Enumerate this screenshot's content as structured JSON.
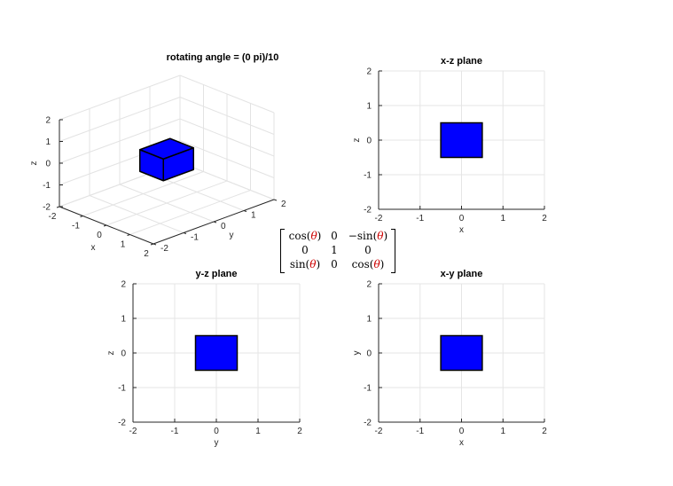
{
  "chart_data": [
    {
      "type": "scatter",
      "subtype": "3d-surface",
      "title": "rotating angle = (0 pi)/10",
      "xlabel": "x",
      "ylabel": "y",
      "zlabel": "z",
      "xlim": [
        -2,
        2
      ],
      "ylim": [
        -2,
        2
      ],
      "zlim": [
        -2,
        2
      ],
      "xticks": [
        "-2",
        "-1",
        "0",
        "1",
        "2"
      ],
      "yticks": [
        "-2",
        "-1",
        "0",
        "1",
        "2"
      ],
      "zticks": [
        "-2",
        "-1",
        "0",
        "1",
        "2"
      ],
      "grid": true,
      "box": {
        "x": [
          -0.5,
          0.5
        ],
        "y": [
          -0.5,
          0.5
        ],
        "z": [
          -0.5,
          0.5
        ],
        "color": "#0000ff"
      }
    },
    {
      "type": "area",
      "title": "x-z plane",
      "xlabel": "x",
      "ylabel": "z",
      "xlim": [
        -2,
        2
      ],
      "ylim": [
        -2,
        2
      ],
      "xticks": [
        "-2",
        "-1",
        "0",
        "1",
        "2"
      ],
      "yticks": [
        "-2",
        "-1",
        "0",
        "1",
        "2"
      ],
      "grid": true,
      "square": {
        "x": [
          -0.5,
          0.5
        ],
        "y": [
          -0.5,
          0.5
        ],
        "color": "#0000ff"
      }
    },
    {
      "type": "area",
      "title": "y-z plane",
      "xlabel": "y",
      "ylabel": "z",
      "xlim": [
        -2,
        2
      ],
      "ylim": [
        -2,
        2
      ],
      "xticks": [
        "-2",
        "-1",
        "0",
        "1",
        "2"
      ],
      "yticks": [
        "-2",
        "-1",
        "0",
        "1",
        "2"
      ],
      "grid": true,
      "square": {
        "x": [
          -0.5,
          0.5
        ],
        "y": [
          -0.5,
          0.5
        ],
        "color": "#0000ff"
      }
    },
    {
      "type": "area",
      "title": "x-y plane",
      "xlabel": "x",
      "ylabel": "y",
      "xlim": [
        -2,
        2
      ],
      "ylim": [
        -2,
        2
      ],
      "xticks": [
        "-2",
        "-1",
        "0",
        "1",
        "2"
      ],
      "yticks": [
        "-2",
        "-1",
        "0",
        "1",
        "2"
      ],
      "grid": true,
      "square": {
        "x": [
          -0.5,
          0.5
        ],
        "y": [
          -0.5,
          0.5
        ],
        "color": "#0000ff"
      }
    }
  ],
  "rotation_matrix": {
    "rows": [
      [
        "cos(",
        "θ",
        ")",
        "0",
        "−sin(",
        "θ",
        ")"
      ],
      [
        "0",
        "",
        "",
        "1",
        "0",
        "",
        ""
      ],
      [
        "sin(",
        "θ",
        ")",
        "0",
        "cos(",
        "θ",
        ")"
      ]
    ],
    "theta_color": "#cc0000"
  }
}
